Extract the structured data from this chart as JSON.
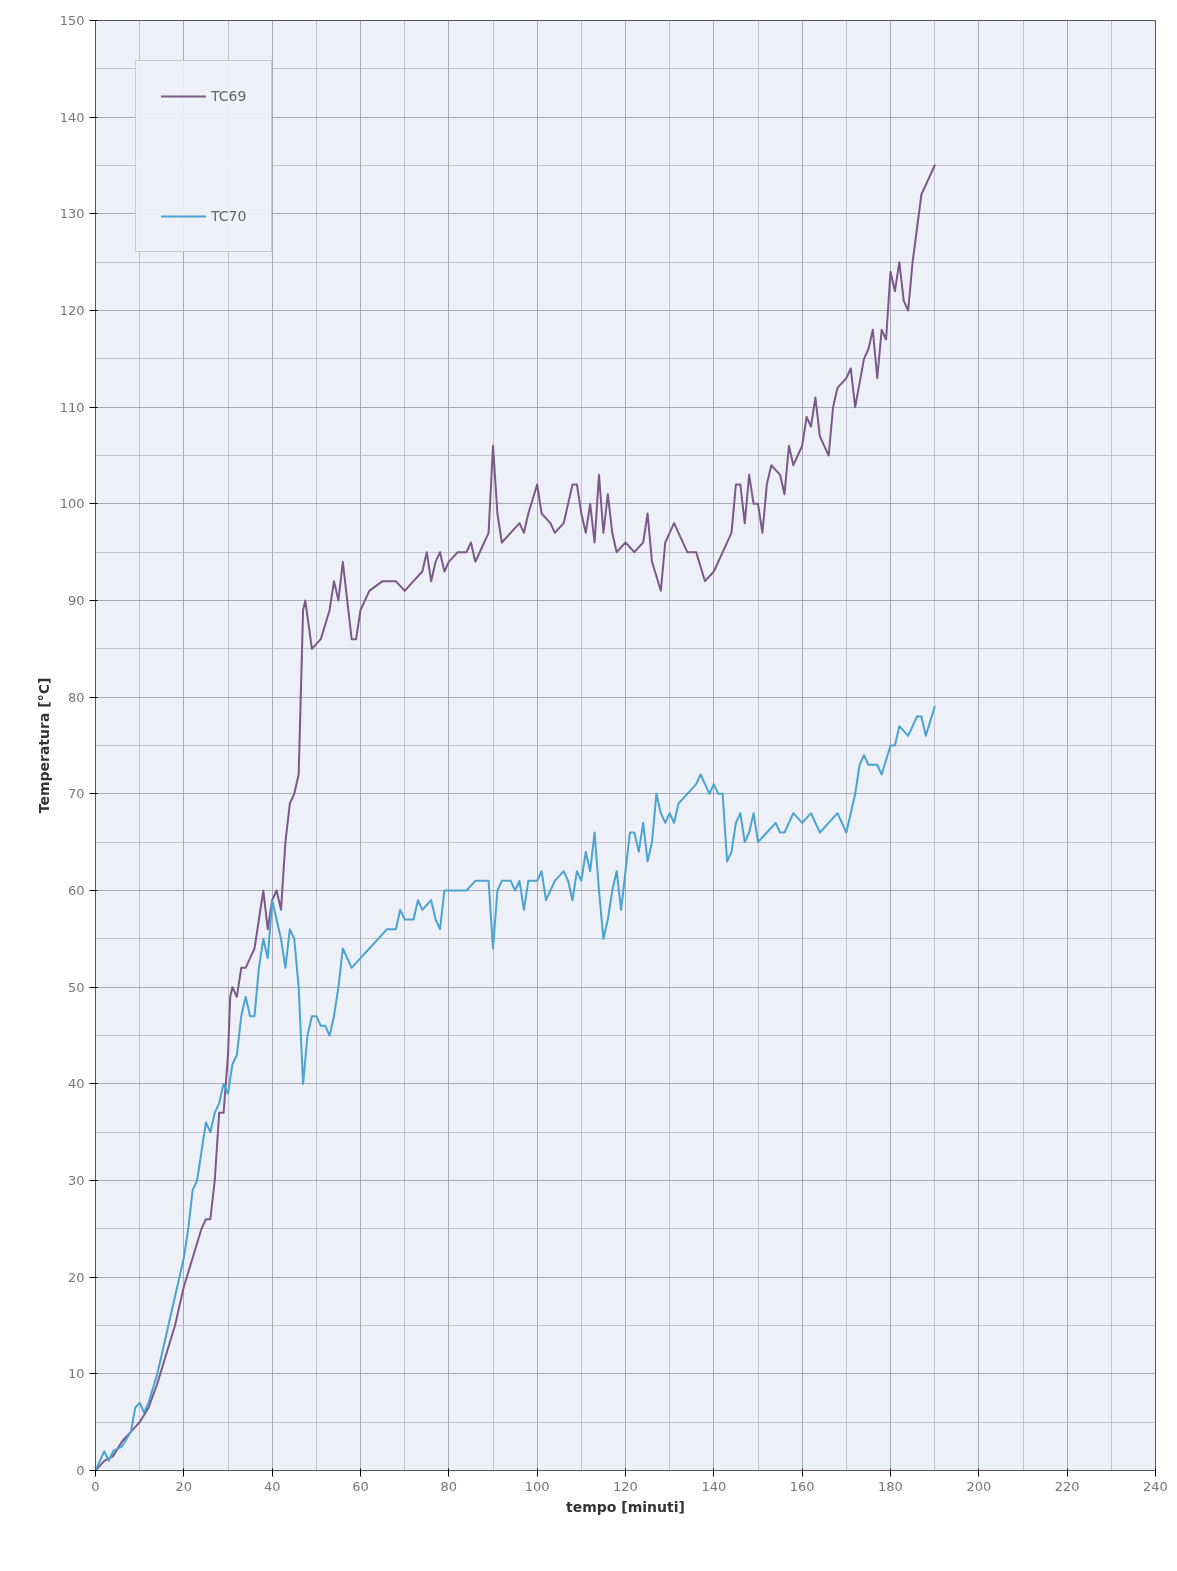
{
  "chart_data": {
    "type": "line",
    "xlabel": "tempo [minuti]",
    "ylabel": "Temperatura [°C]",
    "xlim": [
      0,
      240
    ],
    "ylim": [
      0,
      150
    ],
    "xticks": [
      0,
      20,
      40,
      60,
      80,
      100,
      120,
      140,
      160,
      180,
      200,
      220,
      240
    ],
    "yticks": [
      0,
      10,
      20,
      30,
      40,
      50,
      60,
      70,
      80,
      90,
      100,
      110,
      120,
      130,
      140,
      150
    ],
    "grid": true,
    "legend": "top left",
    "marker": "none",
    "line_style": "solid",
    "series": [
      {
        "name": "TC69",
        "color": "#7b5a8a",
        "x": [
          0,
          2,
          4,
          6,
          8,
          10,
          12,
          14,
          16,
          18,
          20,
          22,
          24,
          25,
          26,
          27,
          28,
          29,
          30,
          30.5,
          31,
          32,
          33,
          34,
          35,
          36,
          37,
          38,
          39,
          40,
          41,
          42,
          43,
          44,
          45,
          46,
          47,
          47.5,
          49,
          51,
          53,
          54,
          55,
          56,
          57,
          58,
          59,
          60,
          62,
          65,
          68,
          70,
          72,
          74,
          75,
          76,
          77,
          78,
          79,
          80,
          82,
          84,
          85,
          86,
          88,
          89,
          90,
          91,
          92,
          94,
          96,
          97,
          98,
          100,
          101,
          103,
          104,
          106,
          108,
          109,
          110,
          111,
          112,
          113,
          114,
          115,
          116,
          117,
          118,
          120,
          122,
          124,
          125,
          126,
          128,
          129,
          131,
          132,
          134,
          136,
          138,
          140,
          142,
          144,
          145,
          146,
          147,
          148,
          149,
          150,
          151,
          152,
          153,
          155,
          156,
          157,
          158,
          159,
          160,
          161,
          162,
          163,
          164,
          165,
          166,
          167,
          168,
          170,
          171,
          172,
          174,
          175,
          176,
          177,
          178,
          179,
          180,
          181,
          182,
          183,
          184,
          185,
          187,
          188,
          190
        ],
        "values": [
          0,
          1,
          1.5,
          3,
          4,
          5,
          6.5,
          9,
          12,
          15,
          19,
          22,
          25,
          26,
          26,
          30,
          37,
          37,
          43,
          49,
          50,
          49,
          52,
          52,
          53,
          54,
          57,
          60,
          56,
          59,
          60,
          58,
          65,
          69,
          70,
          72,
          89,
          90,
          85,
          86,
          89,
          92,
          90,
          94,
          90,
          86,
          86,
          89,
          91,
          92,
          92,
          91,
          92,
          93,
          95,
          92,
          94,
          95,
          93,
          94,
          95,
          95,
          96,
          94,
          96,
          97,
          106,
          99,
          96,
          97,
          98,
          97,
          99,
          102,
          99,
          98,
          97,
          98,
          102,
          102,
          99,
          97,
          100,
          96,
          103,
          97,
          101,
          97,
          95,
          96,
          95,
          96,
          99,
          94,
          91,
          96,
          98,
          97,
          95,
          95,
          92,
          93,
          95,
          97,
          102,
          102,
          98,
          103,
          100,
          100,
          97,
          102,
          104,
          103,
          101,
          106,
          104,
          105,
          106,
          109,
          108,
          111,
          107,
          106,
          105,
          110,
          112,
          113,
          114,
          110,
          115,
          116,
          118,
          113,
          118,
          117,
          124,
          122,
          125,
          121,
          120,
          125,
          132,
          133,
          135
        ]
      },
      {
        "name": "TC70",
        "color": "#4aa3d0",
        "x": [
          0,
          2,
          3,
          4,
          6,
          8,
          9,
          10,
          11,
          12,
          14,
          16,
          18,
          20,
          21,
          22,
          23,
          24,
          25,
          26,
          27,
          28,
          29,
          30,
          31,
          32,
          33,
          34,
          35,
          36,
          37,
          38,
          39,
          40,
          41,
          42,
          43,
          44,
          45,
          46,
          47,
          48,
          49,
          50,
          51,
          52,
          53,
          54,
          55,
          56,
          57,
          58,
          60,
          62,
          64,
          66,
          68,
          69,
          70,
          72,
          73,
          74,
          76,
          77,
          78,
          79,
          80,
          82,
          84,
          86,
          88,
          89,
          90,
          91,
          92,
          94,
          95,
          96,
          97,
          98,
          100,
          101,
          102,
          104,
          106,
          107,
          108,
          109,
          110,
          111,
          112,
          113,
          114,
          115,
          116,
          117,
          118,
          119,
          120,
          121,
          122,
          123,
          124,
          125,
          126,
          127,
          128,
          129,
          130,
          131,
          132,
          134,
          136,
          137,
          138,
          139,
          140,
          141,
          142,
          143,
          144,
          145,
          146,
          147,
          148,
          149,
          150,
          152,
          154,
          155,
          156,
          158,
          160,
          162,
          164,
          166,
          168,
          169,
          170,
          171,
          172,
          173,
          174,
          175,
          176,
          177,
          178,
          180,
          181,
          182,
          184,
          186,
          187,
          188,
          190
        ],
        "values": [
          0,
          2,
          1,
          2,
          2.5,
          4,
          6.5,
          7,
          6,
          7,
          10,
          14,
          18,
          22,
          25,
          29,
          30,
          33,
          36,
          35,
          37,
          38,
          40,
          39,
          42,
          43,
          47,
          49,
          47,
          47,
          52,
          55,
          53,
          59,
          57,
          55,
          52,
          56,
          55,
          50,
          40,
          45,
          47,
          47,
          46,
          46,
          45,
          47,
          50,
          54,
          53,
          52,
          53,
          54,
          55,
          56,
          56,
          58,
          57,
          57,
          59,
          58,
          59,
          57,
          56,
          60,
          60,
          60,
          60,
          61,
          61,
          61,
          54,
          60,
          61,
          61,
          60,
          61,
          58,
          61,
          61,
          62,
          59,
          61,
          62,
          61,
          59,
          62,
          61,
          64,
          62,
          66,
          60,
          55,
          57,
          60,
          62,
          58,
          62,
          66,
          66,
          64,
          67,
          63,
          65,
          70,
          68,
          67,
          68,
          67,
          69,
          70,
          71,
          72,
          71,
          70,
          71,
          70,
          70,
          63,
          64,
          67,
          68,
          65,
          66,
          68,
          65,
          66,
          67,
          66,
          66,
          68,
          67,
          68,
          66,
          67,
          68,
          67,
          66,
          68,
          70,
          73,
          74,
          73,
          73,
          73,
          72,
          75,
          75,
          77,
          76,
          78,
          78,
          76,
          79
        ]
      }
    ]
  }
}
